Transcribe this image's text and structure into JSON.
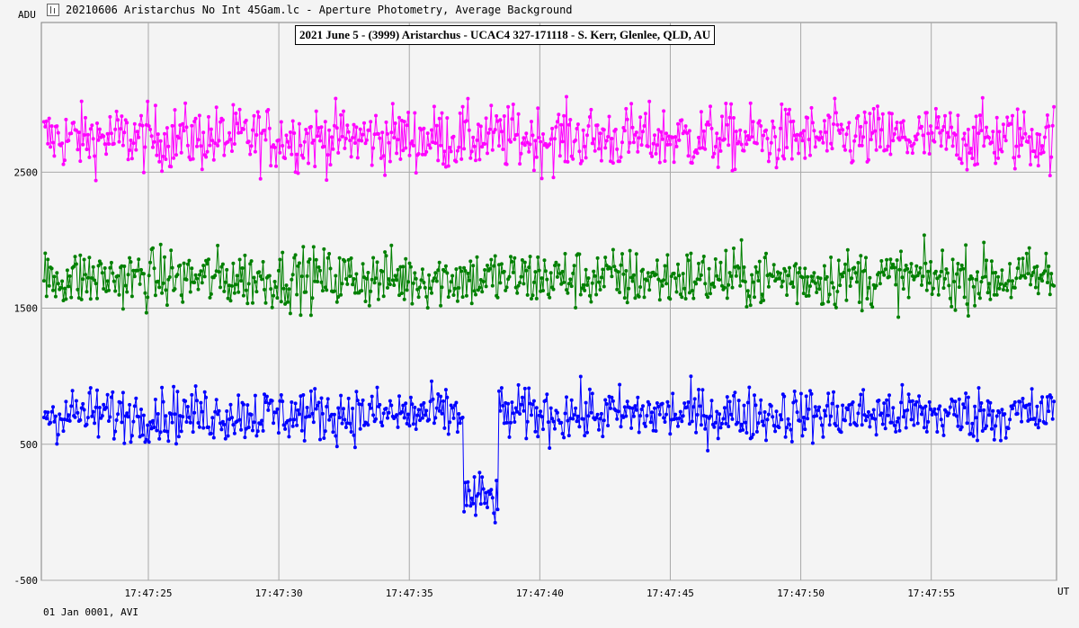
{
  "window": {
    "title": "20210606 Aristarchus No Int 45Gam.lc - Aperture Photometry, Average Background",
    "icon": "lightcurve-app-icon"
  },
  "footer": {
    "text": "01 Jan 0001, AVI"
  },
  "chart_data": {
    "type": "line",
    "title": "2021 June 5 - (3999) Aristarchus - UCAC4 327-171118 - S. Kerr, Glenlee, QLD, AU",
    "xlabel": "UT",
    "ylabel": "ADU",
    "y_ticks": [
      -500,
      500,
      1500,
      2500
    ],
    "y_tick_labels": [
      "-500",
      "500",
      "1500",
      "2500"
    ],
    "ylim": [
      -500,
      3600
    ],
    "x_tick_labels": [
      "17:47:25",
      "17:47:30",
      "17:47:35",
      "17:47:40",
      "17:47:45",
      "17:47:50",
      "17:47:55"
    ],
    "x_ticks_seconds": [
      25,
      30,
      35,
      40,
      45,
      50,
      55
    ],
    "xlim_seconds": [
      20.9,
      59.8
    ],
    "grid": true,
    "marker": "circle",
    "frame_count": 780,
    "series": [
      {
        "color": "#ff00ff",
        "mean": 2750,
        "noise": 120
      },
      {
        "color": "#008000",
        "mean": 1720,
        "noise": 110
      },
      {
        "color": "#0000ff",
        "mean": 720,
        "noise": 100,
        "event": {
          "start_seconds": 37.05,
          "end_seconds": 38.4,
          "mean_during_event": 100
        }
      }
    ]
  }
}
